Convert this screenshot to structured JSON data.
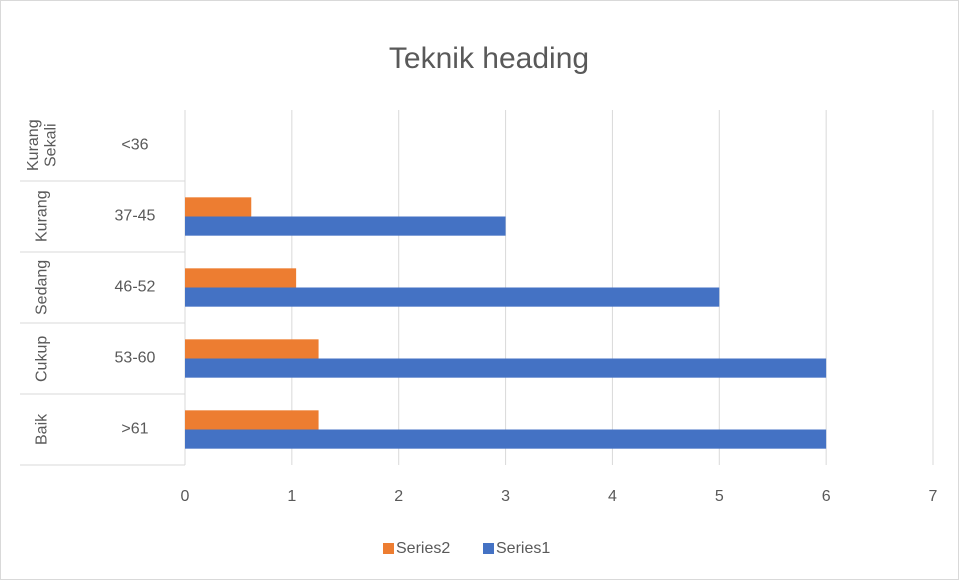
{
  "chart_data": {
    "type": "bar",
    "orientation": "horizontal",
    "title": "Teknik heading",
    "categories": [
      ">61",
      "53-60",
      "46-52",
      "37-45",
      "<36"
    ],
    "category_groups": [
      "Baik",
      "Cukup",
      "Sedang",
      "Kurang",
      "Kurang Sekali"
    ],
    "series": [
      {
        "name": "Series1",
        "color": "#4472C4",
        "values": [
          6,
          6,
          5,
          3,
          null
        ]
      },
      {
        "name": "Series2",
        "color": "#ED7D31",
        "values": [
          1.25,
          1.25,
          1.04,
          0.62,
          null
        ]
      }
    ],
    "xlim": [
      0,
      7
    ],
    "xticks": [
      0,
      1,
      2,
      3,
      4,
      5,
      6,
      7
    ],
    "grid": true,
    "legend": "bottom"
  }
}
